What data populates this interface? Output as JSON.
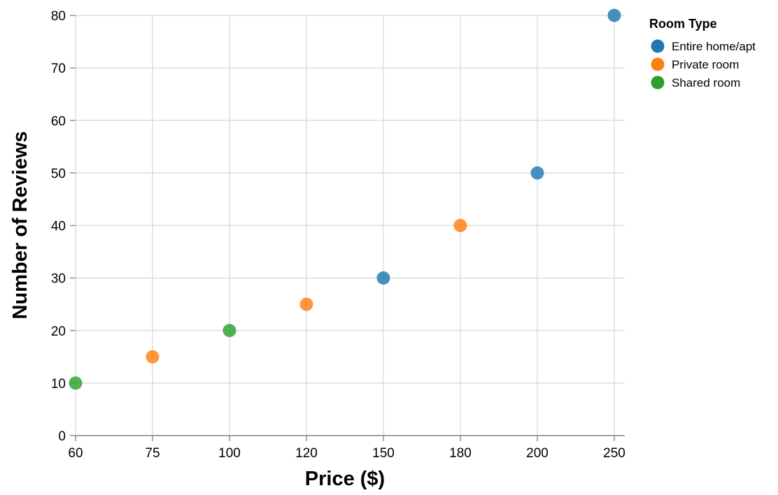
{
  "chart_data": {
    "type": "scatter",
    "xlabel": "Price ($)",
    "ylabel": "Number of Reviews",
    "x_scale": "ordinal",
    "x_categories": [
      "60",
      "75",
      "100",
      "120",
      "150",
      "180",
      "200",
      "250"
    ],
    "ylim": [
      0,
      80
    ],
    "y_ticks": [
      0,
      10,
      20,
      30,
      40,
      50,
      60,
      70,
      80
    ],
    "grid": true,
    "legend": {
      "title": "Room Type",
      "placement": "top-right",
      "entries": [
        {
          "label": "Entire home/apt",
          "color": "#1f77b4"
        },
        {
          "label": "Private room",
          "color": "#ff7f0e"
        },
        {
          "label": "Shared room",
          "color": "#2ca02c"
        }
      ]
    },
    "series": [
      {
        "name": "Entire home/apt",
        "color": "#1f77b4",
        "points": [
          {
            "x": "150",
            "y": 30
          },
          {
            "x": "200",
            "y": 50
          },
          {
            "x": "250",
            "y": 80
          }
        ]
      },
      {
        "name": "Private room",
        "color": "#ff7f0e",
        "points": [
          {
            "x": "75",
            "y": 15
          },
          {
            "x": "120",
            "y": 25
          },
          {
            "x": "180",
            "y": 40
          }
        ]
      },
      {
        "name": "Shared room",
        "color": "#2ca02c",
        "points": [
          {
            "x": "60",
            "y": 10
          },
          {
            "x": "100",
            "y": 20
          }
        ]
      }
    ]
  }
}
